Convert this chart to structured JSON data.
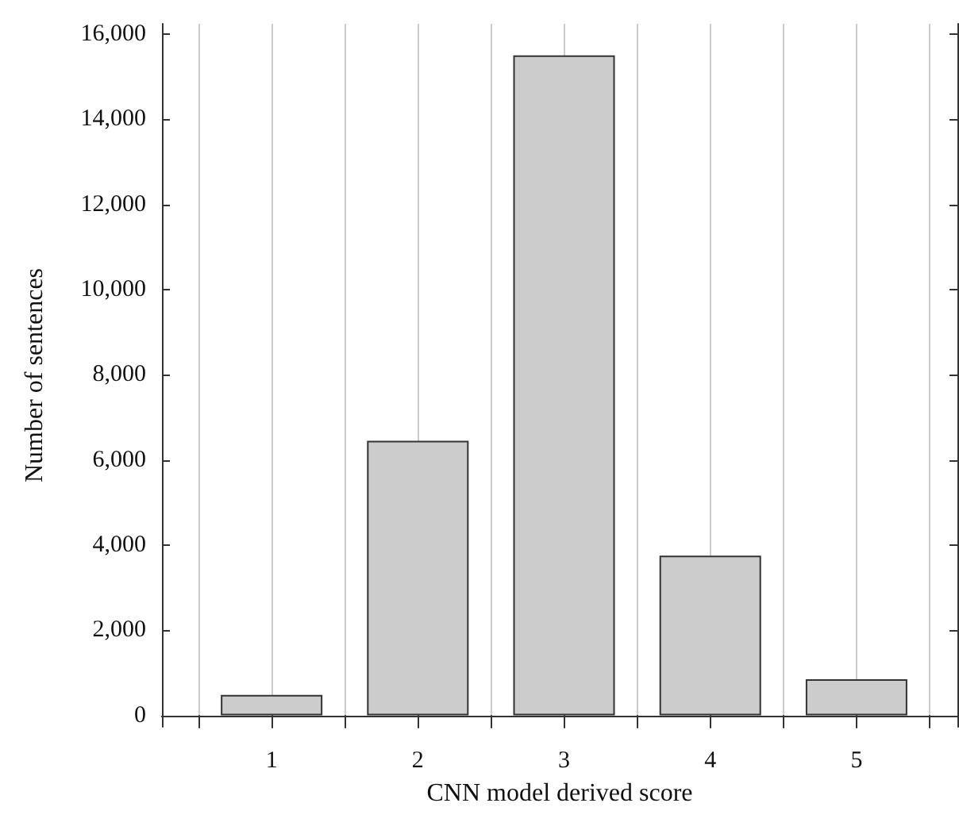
{
  "chart_data": {
    "type": "bar",
    "xlabel": "CNN model derived score",
    "ylabel": "Number of sentences",
    "x": [
      1,
      2,
      3,
      4,
      5
    ],
    "values": [
      480,
      6450,
      15500,
      3750,
      850
    ],
    "color": "#cccccc",
    "xlim": [
      0.25,
      5.69
    ],
    "xticks": [
      {
        "value": 0.5,
        "label": null
      },
      {
        "value": 1,
        "label": "1"
      },
      {
        "value": 1.5,
        "label": null
      },
      {
        "value": 2,
        "label": "2"
      },
      {
        "value": 2.5,
        "label": null
      },
      {
        "value": 3,
        "label": "3"
      },
      {
        "value": 3.5,
        "label": null
      },
      {
        "value": 4,
        "label": "4"
      },
      {
        "value": 4.5,
        "label": null
      },
      {
        "value": 5,
        "label": "5"
      },
      {
        "value": 5.5,
        "label": null
      }
    ],
    "ylim": [
      -270,
      16240
    ],
    "yticks": [
      0,
      {
        "value": 2000,
        "label": "2,000"
      },
      {
        "value": 4000,
        "label": "4,000"
      },
      {
        "value": 6000,
        "label": "6,000"
      },
      {
        "value": 8000,
        "label": "8,000"
      },
      {
        "value": 10000,
        "label": "10,000"
      },
      {
        "value": 12000,
        "label": "12,000"
      },
      {
        "value": 14000,
        "label": "14,000"
      },
      {
        "value": 16000,
        "label": "16,000"
      }
    ],
    "grid": "x"
  }
}
